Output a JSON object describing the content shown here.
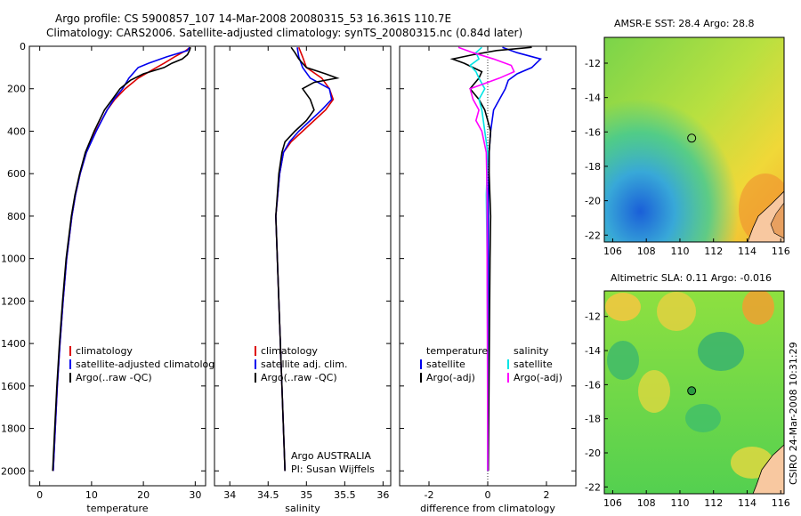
{
  "header": {
    "line1": "Argo profile: CS 5900857_107 14-Mar-2008 20080315_53 16.361S 110.7E",
    "line2": "Climatology: CARS2006. Satellite-adjusted climatology: synTS_20080315.nc (0.84d later)"
  },
  "side_label": "CSIRO 24-Mar-2008 10:31:29",
  "colors": {
    "climatology": "#dd0000",
    "satellite": "#0000ee",
    "argo": "#000000",
    "satellite_salinity": "#00e5e5",
    "argo_salinity": "#ff00ff"
  },
  "chart_data": [
    {
      "type": "line",
      "name": "temperature",
      "xlabel": "temperature",
      "ylabel": "",
      "xlim": [
        -2,
        32
      ],
      "ylim": [
        2070,
        0
      ],
      "x_ticks": [
        0,
        10,
        20,
        30
      ],
      "y_ticks": [
        0,
        200,
        400,
        600,
        800,
        1000,
        1200,
        1400,
        1600,
        1800,
        2000
      ],
      "legend": [
        "climatology",
        "satellite-adjusted climatology",
        "Argo(..raw -QC)"
      ],
      "series": [
        {
          "name": "climatology",
          "color": "#dd0000",
          "depth": [
            5,
            20,
            50,
            80,
            100,
            150,
            200,
            250,
            300,
            400,
            500,
            600,
            700,
            800,
            1000,
            1200,
            1400,
            1600,
            1800,
            2000
          ],
          "values": [
            29,
            28.2,
            26,
            24,
            22.5,
            19,
            16.5,
            14.5,
            13,
            10.8,
            9,
            7.8,
            6.9,
            6.2,
            5.2,
            4.5,
            3.9,
            3.4,
            3.0,
            2.6
          ]
        },
        {
          "name": "satellite-adjusted climatology",
          "color": "#0000ee",
          "depth": [
            5,
            20,
            50,
            80,
            100,
            150,
            200,
            250,
            300,
            400,
            500,
            600,
            700,
            800,
            1000,
            1200,
            1400,
            1600,
            1800,
            2000
          ],
          "values": [
            28.9,
            28.5,
            24.5,
            21,
            19,
            17.2,
            16,
            14.3,
            13,
            10.9,
            9,
            7.8,
            6.9,
            6.2,
            5.2,
            4.5,
            3.9,
            3.4,
            3.0,
            2.6
          ]
        },
        {
          "name": "Argo(..raw -QC)",
          "color": "#000000",
          "depth": [
            5,
            20,
            40,
            60,
            80,
            100,
            130,
            160,
            200,
            250,
            300,
            400,
            500,
            600,
            700,
            800,
            1000,
            1200,
            1400,
            1600,
            1800,
            2000
          ],
          "values": [
            29.1,
            28.9,
            28.5,
            27.5,
            25.5,
            24,
            20,
            17.5,
            15.5,
            14,
            12.5,
            10.5,
            8.8,
            7.7,
            6.8,
            6.1,
            5.1,
            4.4,
            3.8,
            3.3,
            2.9,
            2.5
          ]
        }
      ]
    },
    {
      "type": "line",
      "name": "salinity",
      "xlabel": "salinity",
      "ylabel": "",
      "xlim": [
        33.8,
        36.1
      ],
      "ylim": [
        2070,
        0
      ],
      "x_ticks": [
        34,
        34.5,
        35,
        35.5,
        36
      ],
      "legend": [
        "climatology",
        "satellite adj. clim.",
        "Argo(..raw -QC)"
      ],
      "annotation": [
        "Argo AUSTRALIA",
        "PI: Susan Wijffels"
      ],
      "series": [
        {
          "name": "climatology",
          "color": "#dd0000",
          "depth": [
            5,
            50,
            100,
            150,
            200,
            250,
            300,
            350,
            400,
            450,
            500,
            600,
            800,
            1000,
            1500,
            2000
          ],
          "values": [
            34.9,
            34.95,
            35.0,
            35.2,
            35.3,
            35.35,
            35.25,
            35.1,
            34.95,
            34.8,
            34.7,
            34.65,
            34.6,
            34.62,
            34.67,
            34.72
          ]
        },
        {
          "name": "satellite adj. clim.",
          "color": "#0000ee",
          "depth": [
            5,
            50,
            100,
            150,
            200,
            250,
            300,
            350,
            400,
            450,
            500,
            600,
            800,
            1000,
            1500,
            2000
          ],
          "values": [
            34.88,
            34.9,
            34.95,
            35.05,
            35.3,
            35.33,
            35.2,
            35.05,
            34.9,
            34.78,
            34.7,
            34.65,
            34.6,
            34.62,
            34.67,
            34.72
          ]
        },
        {
          "name": "Argo(..raw -QC)",
          "color": "#000000",
          "depth": [
            5,
            30,
            60,
            80,
            100,
            130,
            150,
            170,
            200,
            250,
            300,
            350,
            400,
            450,
            500,
            600,
            800,
            1000,
            1500,
            2000
          ],
          "values": [
            34.8,
            34.85,
            34.9,
            34.95,
            35.0,
            35.25,
            35.4,
            35.1,
            34.95,
            35.05,
            35.1,
            35.0,
            34.85,
            34.72,
            34.68,
            34.64,
            34.6,
            34.62,
            34.67,
            34.72
          ]
        }
      ]
    },
    {
      "type": "line",
      "name": "difference from climatology",
      "xlabel": "difference from climatology",
      "ylabel": "",
      "xlim": [
        -3,
        3
      ],
      "ylim": [
        2070,
        0
      ],
      "x_ticks": [
        -2,
        0,
        2
      ],
      "legend": [
        "temperature",
        "satellite",
        "Argo(-adj)",
        "salinity",
        "satellite",
        "Argo(-adj)"
      ],
      "series": [
        {
          "name": "temperature satellite",
          "color": "#0000ee",
          "depth": [
            5,
            30,
            60,
            100,
            130,
            160,
            200,
            300,
            400,
            500,
            700,
            1000,
            1500,
            2000
          ],
          "values": [
            0.5,
            1.0,
            1.8,
            1.5,
            1.0,
            0.7,
            0.6,
            0.2,
            0.1,
            0.05,
            0.02,
            0.02,
            0.01,
            0.0
          ]
        },
        {
          "name": "temperature Argo(-adj)",
          "color": "#000000",
          "depth": [
            5,
            20,
            40,
            60,
            80,
            100,
            120,
            150,
            200,
            250,
            300,
            400,
            500,
            600,
            800,
            1000,
            1500,
            2000
          ],
          "values": [
            1.5,
            0.3,
            -0.5,
            -1.2,
            -0.8,
            -0.5,
            -0.2,
            -0.3,
            -0.6,
            -0.3,
            -0.1,
            0.1,
            0.05,
            0.05,
            0.1,
            0.08,
            0.05,
            0.02
          ]
        },
        {
          "name": "salinity satellite",
          "color": "#00e5e5",
          "depth": [
            5,
            30,
            60,
            90,
            120,
            150,
            200,
            250,
            300,
            400,
            500,
            700,
            1000,
            1500,
            2000
          ],
          "values": [
            -0.2,
            -0.4,
            -0.3,
            -0.6,
            -0.4,
            -0.3,
            -0.1,
            -0.3,
            -0.2,
            -0.1,
            0.0,
            -0.05,
            -0.02,
            0.0,
            0.0
          ]
        },
        {
          "name": "salinity Argo(-adj)",
          "color": "#ff00ff",
          "depth": [
            5,
            30,
            60,
            90,
            120,
            150,
            180,
            200,
            250,
            300,
            350,
            400,
            500,
            700,
            1000,
            1500,
            2000
          ],
          "values": [
            -1.0,
            -0.5,
            0.2,
            0.8,
            0.9,
            0.4,
            -0.2,
            -0.6,
            -0.5,
            -0.3,
            -0.4,
            -0.2,
            -0.05,
            -0.02,
            -0.02,
            -0.01,
            0.0
          ]
        }
      ]
    },
    {
      "type": "heatmap",
      "name": "AMSR-E SST",
      "title": "AMSR-E SST: 28.4 Argo: 28.8",
      "xlim": [
        105.5,
        116.2
      ],
      "ylim": [
        -22.4,
        -10.5
      ],
      "x_ticks": [
        106,
        108,
        110,
        112,
        114,
        116
      ],
      "y_ticks": [
        -12,
        -14,
        -16,
        -18,
        -20,
        -22
      ],
      "marker": {
        "lon": 110.7,
        "lat": -16.361
      }
    },
    {
      "type": "heatmap",
      "name": "Altimetric SLA",
      "title": "Altimetric SLA: 0.11 Argo: -0.016",
      "xlim": [
        105.5,
        116.2
      ],
      "ylim": [
        -22.4,
        -10.5
      ],
      "x_ticks": [
        106,
        108,
        110,
        112,
        114,
        116
      ],
      "y_ticks": [
        -12,
        -14,
        -16,
        -18,
        -20,
        -22
      ],
      "marker": {
        "lon": 110.7,
        "lat": -16.361
      }
    }
  ]
}
